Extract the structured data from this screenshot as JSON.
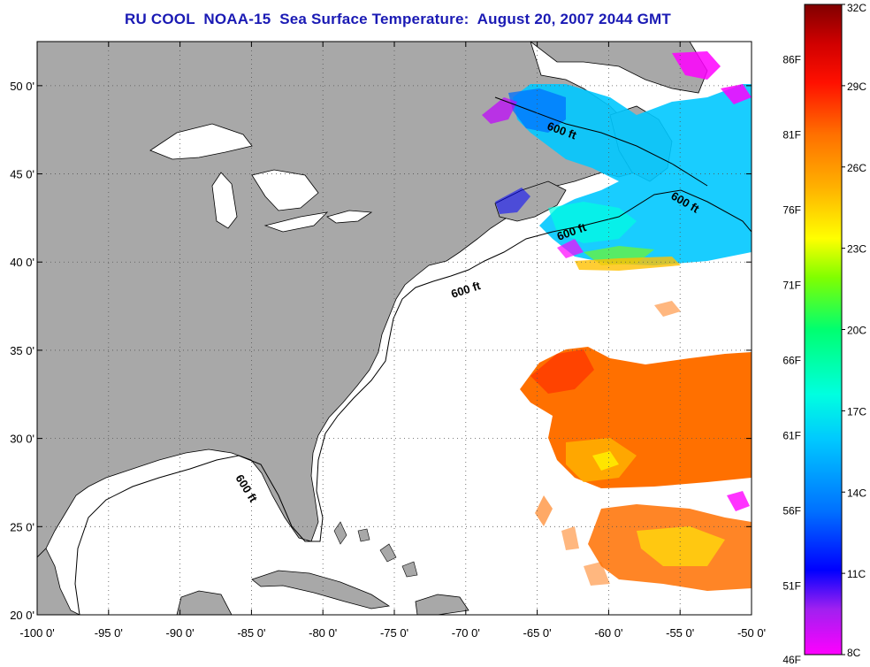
{
  "title": "RU COOL  NOAA-15  Sea Surface Temperature:  August 20, 2007 2044 GMT",
  "map": {
    "lon_labels": [
      "-100 0'",
      "-95 0'",
      "-90 0'",
      "-85 0'",
      "-80 0'",
      "-75 0'",
      "-70 0'",
      "-65 0'",
      "-60 0'",
      "-55 0'",
      "-50 0'"
    ],
    "lat_labels": [
      "50 0'",
      "45 0'",
      "40 0'",
      "35 0'",
      "30 0'",
      "25 0'",
      "20 0'"
    ],
    "lon_range": [
      -100,
      -50
    ],
    "lat_range": [
      20,
      52.5
    ],
    "isobath_label": "600 ft",
    "colors": {
      "land": "#a8a8a8",
      "ocean_no_data": "#ffffff",
      "lakes": "#ffffff",
      "title_text": "#1a1ab4"
    }
  },
  "colorbar": {
    "fahrenheit_labels": [
      "86F",
      "81F",
      "76F",
      "71F",
      "66F",
      "61F",
      "56F",
      "51F",
      "46F"
    ],
    "celsius_labels": [
      "32C",
      "29C",
      "26C",
      "23C",
      "20C",
      "17C",
      "14C",
      "11C",
      "8C"
    ],
    "range_c": [
      8,
      32
    ],
    "gradient": [
      "#ff00ff",
      "#8a2be2",
      "#0000ff",
      "#0078ff",
      "#00c8ff",
      "#00ffe0",
      "#00ff80",
      "#80ff00",
      "#ffff00",
      "#ffc000",
      "#ff8000",
      "#ff2000",
      "#ff0000",
      "#c00000",
      "#800000"
    ]
  }
}
